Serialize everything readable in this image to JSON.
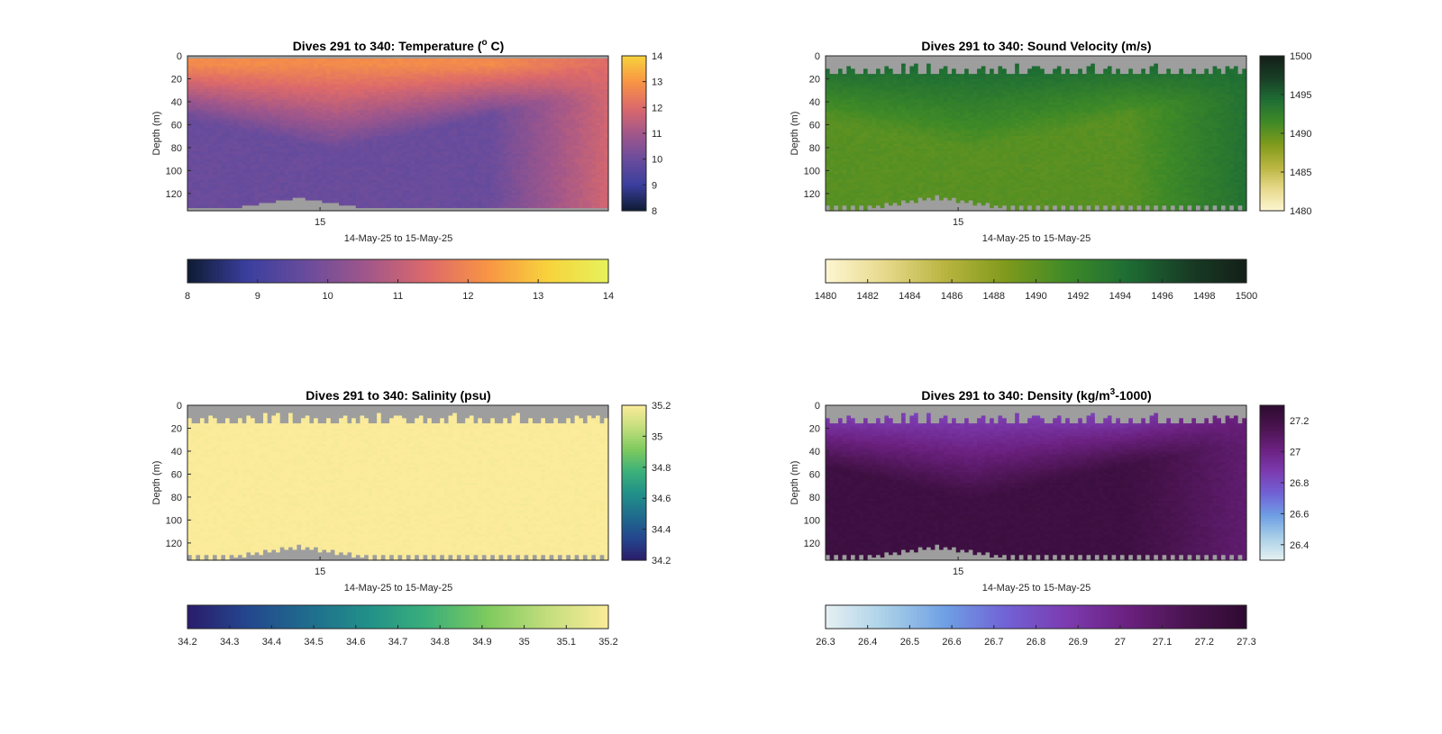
{
  "chart_data": [
    {
      "id": "temperature",
      "type": "heatmap",
      "title": "Dives 291 to 340: Temperature (",
      "title_sup": "o",
      "title_tail": " C)",
      "ylabel": "Depth (m)",
      "xlabel": "14-May-25 to 15-May-25",
      "xticks": [
        "15"
      ],
      "xtick_pos": [
        0.315
      ],
      "ylim": [
        0,
        135
      ],
      "yticks": [
        0,
        20,
        40,
        60,
        80,
        100,
        120
      ],
      "ytick_labels": [
        "0",
        "20",
        "40",
        "60",
        "80",
        "100",
        "120"
      ],
      "clim": [
        8,
        14
      ],
      "cticks": [
        8,
        9,
        10,
        11,
        12,
        13,
        14
      ],
      "cticks_right": [
        8,
        9,
        10,
        11,
        12,
        13,
        14
      ],
      "colormap": [
        "#0e1b33",
        "#3b3f9e",
        "#6a4c9c",
        "#a2578a",
        "#dd6a6a",
        "#f89544",
        "#f8d33c",
        "#e6f25c"
      ],
      "colorbar_right_map": [
        "#0e1b33",
        "#3b3f9e",
        "#6a4c9c",
        "#a2578a",
        "#dd6a6a",
        "#f89544",
        "#f8d33c"
      ],
      "profile": {
        "surface": 12.1,
        "deep": 9.7,
        "warm_end": 11.4
      },
      "top_mask_depth": 2
    },
    {
      "id": "sound_velocity",
      "type": "heatmap",
      "title": "Dives 291 to 340: Sound Velocity (m/s)",
      "ylabel": "Depth (m)",
      "xlabel": "14-May-25 to 15-May-25",
      "xticks": [
        "15"
      ],
      "xtick_pos": [
        0.315
      ],
      "ylim": [
        0,
        135
      ],
      "yticks": [
        0,
        20,
        40,
        60,
        80,
        100,
        120
      ],
      "ytick_labels": [
        "0",
        "20",
        "40",
        "60",
        "80",
        "100",
        "120"
      ],
      "clim": [
        1480,
        1500
      ],
      "cticks": [
        1480,
        1482,
        1484,
        1486,
        1488,
        1490,
        1492,
        1494,
        1496,
        1498,
        1500
      ],
      "cticks_right": [
        1480,
        1485,
        1490,
        1495,
        1500
      ],
      "colormap": [
        "#fdf6d2",
        "#e6d98a",
        "#b8b43f",
        "#7f9a1c",
        "#3f8a27",
        "#1f6e34",
        "#183e26",
        "#141f18"
      ],
      "profile": {
        "surface": 1494.6,
        "deep": 1490.3,
        "warm_end": 1494.3
      },
      "top_mask_depth": 15
    },
    {
      "id": "salinity",
      "type": "heatmap",
      "title": "Dives 291 to 340: Salinity (psu)",
      "ylabel": "Depth (m)",
      "xlabel": "14-May-25 to 15-May-25",
      "xticks": [
        "15"
      ],
      "xtick_pos": [
        0.315
      ],
      "ylim": [
        0,
        135
      ],
      "yticks": [
        0,
        20,
        40,
        60,
        80,
        100,
        120
      ],
      "ytick_labels": [
        "0",
        "20",
        "40",
        "60",
        "80",
        "100",
        "120"
      ],
      "clim": [
        34.2,
        35.2
      ],
      "cticks": [
        34.2,
        34.3,
        34.4,
        34.5,
        34.6,
        34.7,
        34.8,
        34.9,
        35,
        35.1,
        35.2
      ],
      "cticks_right": [
        34.2,
        34.4,
        34.6,
        34.8,
        35,
        35.2
      ],
      "colormap": [
        "#2a1c6b",
        "#24478e",
        "#1f6c8d",
        "#219089",
        "#3bb07a",
        "#7fca5e",
        "#c4de7d",
        "#fbeb9a"
      ],
      "profile": {
        "surface": 35.2,
        "deep": 35.2,
        "warm_end": 35.2
      },
      "top_mask_depth": 15
    },
    {
      "id": "density",
      "type": "heatmap",
      "title": "Dives 291 to 340: Density (kg/m",
      "title_sup": "3",
      "title_tail": "-1000)",
      "ylabel": "Depth (m)",
      "xlabel": "14-May-25 to 15-May-25",
      "xticks": [
        "15"
      ],
      "xtick_pos": [
        0.315
      ],
      "ylim": [
        0,
        135
      ],
      "yticks": [
        0,
        20,
        40,
        60,
        80,
        100,
        120
      ],
      "ytick_labels": [
        "0",
        "20",
        "40",
        "60",
        "80",
        "100",
        "120"
      ],
      "clim": [
        26.3,
        27.3
      ],
      "cticks": [
        26.3,
        26.4,
        26.5,
        26.6,
        26.7,
        26.8,
        26.9,
        27,
        27.1,
        27.2,
        27.3
      ],
      "cticks_right": [
        26.4,
        26.6,
        26.8,
        27,
        27.2
      ],
      "colormap": [
        "#e6f1f2",
        "#a9d0e8",
        "#6f9fe4",
        "#7162d6",
        "#7c3bb0",
        "#6b2180",
        "#4a1450",
        "#2e0a30"
      ],
      "profile": {
        "surface": 26.85,
        "deep": 27.22,
        "warm_end": 27.05
      },
      "top_mask_depth": 15
    }
  ],
  "colors": {
    "nan": "#9e9e9e",
    "text": "#262626",
    "axis": "#262626"
  }
}
